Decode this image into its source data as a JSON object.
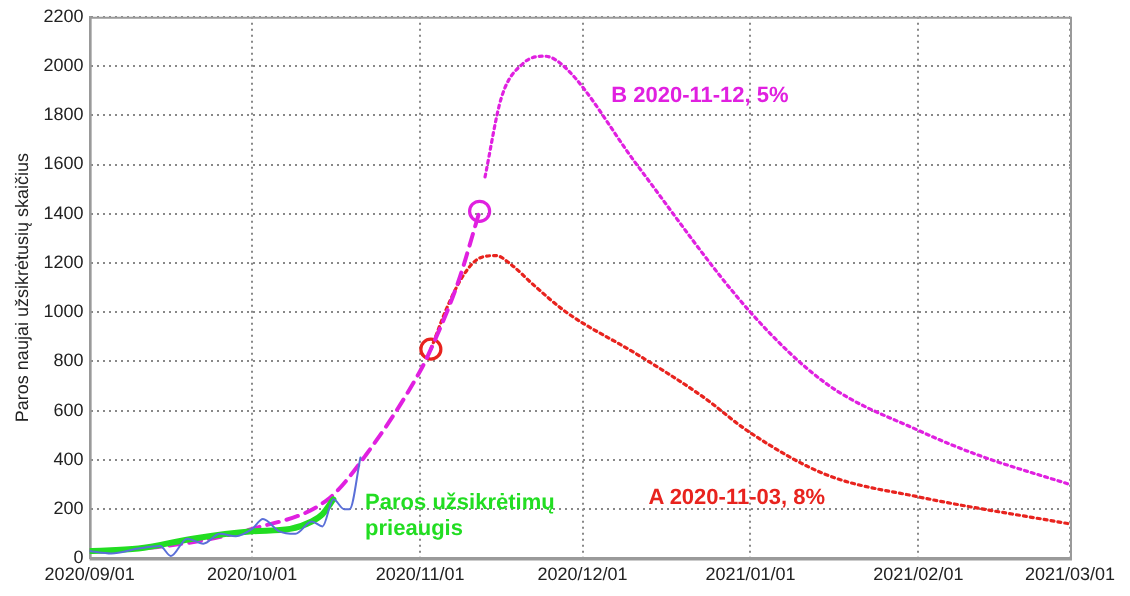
{
  "chart_data": {
    "type": "line",
    "ylabel": "Paros naujai užsikrėtusių skaičius",
    "xlim": [
      "2020-09-01",
      "2021-03-01"
    ],
    "xticks": [
      {
        "value": "2020-09-01",
        "label": "2020/09/01"
      },
      {
        "value": "2020-10-01",
        "label": "2020/10/01"
      },
      {
        "value": "2020-11-01",
        "label": "2020/11/01"
      },
      {
        "value": "2020-12-01",
        "label": "2020/12/01"
      },
      {
        "value": "2021-01-01",
        "label": "2021/01/01"
      },
      {
        "value": "2021-02-01",
        "label": "2021/02/01"
      },
      {
        "value": "2021-03-01",
        "label": "2021/03/01"
      }
    ],
    "ylim": [
      0,
      2200
    ],
    "yticks": [
      0,
      200,
      400,
      600,
      800,
      1000,
      1200,
      1400,
      1600,
      1800,
      2000,
      2200
    ],
    "grid": true,
    "legend": false,
    "series": [
      {
        "color": "#5a6fd8",
        "line_style": "solid",
        "marker": "none",
        "x": [
          "2020-09-01",
          "2020-09-05",
          "2020-09-10",
          "2020-09-14",
          "2020-09-16",
          "2020-09-19",
          "2020-09-22",
          "2020-09-25",
          "2020-09-28",
          "2020-10-01",
          "2020-10-03",
          "2020-10-06",
          "2020-10-09",
          "2020-10-12",
          "2020-10-14",
          "2020-10-16",
          "2020-10-18",
          "2020-10-19",
          "2020-10-21"
        ],
        "values": [
          30,
          20,
          40,
          50,
          10,
          80,
          60,
          100,
          90,
          120,
          160,
          110,
          100,
          150,
          130,
          240,
          200,
          200,
          410
        ]
      },
      {
        "name": "Paros užsikrėtimų prieaugis",
        "color": "#22dd22",
        "line_style": "solid",
        "marker": "none",
        "x": [
          "2020-09-01",
          "2020-09-10",
          "2020-09-20",
          "2020-10-01",
          "2020-10-08",
          "2020-10-12",
          "2020-10-14",
          "2020-10-16"
        ],
        "values": [
          30,
          40,
          80,
          110,
          120,
          150,
          180,
          240
        ]
      },
      {
        "color": "#e020e0",
        "line_style": "dashed",
        "marker": "none",
        "x": [
          "2020-09-01",
          "2020-09-15",
          "2020-10-01",
          "2020-10-15",
          "2020-10-22",
          "2020-11-01",
          "2020-11-03",
          "2020-11-08",
          "2020-11-12"
        ],
        "values": [
          30,
          50,
          120,
          240,
          420,
          760,
          850,
          1120,
          1410
        ]
      },
      {
        "name": "B 2020-11-12, 5%",
        "color": "#e020e0",
        "line_style": "dotted",
        "marker": "none",
        "x": [
          "2020-11-13",
          "2020-11-16",
          "2020-11-20",
          "2020-11-24",
          "2020-11-28",
          "2020-12-11",
          "2021-01-01",
          "2021-01-15",
          "2021-02-01",
          "2021-02-12",
          "2021-03-01"
        ],
        "values": [
          1550,
          1870,
          2010,
          2040,
          1990,
          1600,
          1000,
          710,
          520,
          420,
          300
        ]
      },
      {
        "name": "A 2020-11-03, 8%",
        "color": "#e8231e",
        "line_style": "dotted",
        "marker": "none",
        "x": [
          "2020-11-03",
          "2020-11-06",
          "2020-11-09",
          "2020-11-12",
          "2020-11-15",
          "2020-11-18",
          "2020-11-22",
          "2020-11-28",
          "2020-12-11",
          "2020-12-23",
          "2021-01-01",
          "2021-01-15",
          "2021-02-01",
          "2021-03-01"
        ],
        "values": [
          850,
          1020,
          1150,
          1220,
          1230,
          1190,
          1110,
          1000,
          830,
          660,
          510,
          340,
          250,
          140
        ]
      },
      {
        "type": "scatter",
        "marker": "circle",
        "colors": [
          "#e8231e",
          "#e020e0"
        ],
        "x": [
          "2020-11-03",
          "2020-11-12"
        ],
        "values": [
          850,
          1410
        ]
      }
    ]
  }
}
